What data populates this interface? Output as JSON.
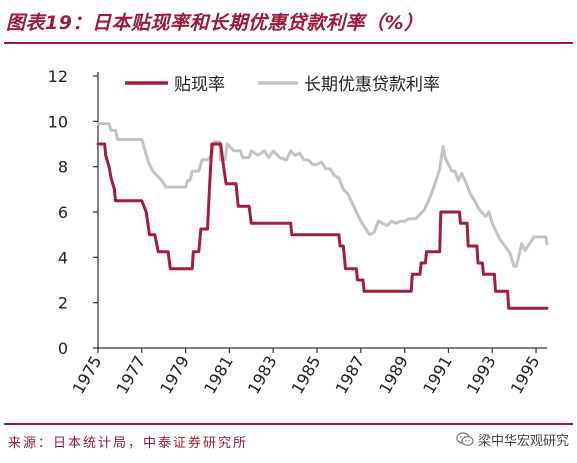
{
  "header": {
    "title": "图表19：日本贴现率和长期优惠贷款利率（%）"
  },
  "footer": {
    "source": "来源：日本统计局，中泰证券研究所",
    "watermark": "梁中华宏观研究",
    "watermark_icon": "wechat-icon"
  },
  "colors": {
    "accent": "#9b1b3a",
    "discount": "#a51c3f",
    "prime": "#c3c3c3"
  },
  "chart_data": {
    "type": "line",
    "xlim": [
      1975,
      1995.5
    ],
    "ylim": [
      0,
      12
    ],
    "x_ticks": [
      "1975",
      "1977",
      "1979",
      "1981",
      "1983",
      "1985",
      "1987",
      "1989",
      "1991",
      "1993",
      "1995"
    ],
    "y_ticks": [
      "0",
      "2",
      "4",
      "6",
      "8",
      "10",
      "12"
    ],
    "legend_placement": "top",
    "grid": false,
    "series": [
      {
        "name": "贴现率",
        "color": "#a51c3f",
        "points": [
          [
            1975.0,
            9.0
          ],
          [
            1975.3,
            9.0
          ],
          [
            1975.35,
            8.5
          ],
          [
            1975.5,
            8.0
          ],
          [
            1975.6,
            7.5
          ],
          [
            1975.75,
            7.0
          ],
          [
            1975.8,
            6.5
          ],
          [
            1976.0,
            6.5
          ],
          [
            1977.0,
            6.5
          ],
          [
            1977.2,
            6.0
          ],
          [
            1977.35,
            5.0
          ],
          [
            1977.6,
            5.0
          ],
          [
            1977.75,
            4.25
          ],
          [
            1978.2,
            4.25
          ],
          [
            1978.3,
            3.5
          ],
          [
            1979.3,
            3.5
          ],
          [
            1979.35,
            4.25
          ],
          [
            1979.6,
            4.25
          ],
          [
            1979.7,
            5.25
          ],
          [
            1980.0,
            5.25
          ],
          [
            1980.1,
            7.25
          ],
          [
            1980.2,
            9.0
          ],
          [
            1980.6,
            9.0
          ],
          [
            1980.7,
            8.25
          ],
          [
            1980.85,
            7.25
          ],
          [
            1981.3,
            7.25
          ],
          [
            1981.4,
            6.25
          ],
          [
            1981.9,
            6.25
          ],
          [
            1982.0,
            5.5
          ],
          [
            1983.8,
            5.5
          ],
          [
            1983.85,
            5.0
          ],
          [
            1986.0,
            5.0
          ],
          [
            1986.05,
            4.5
          ],
          [
            1986.2,
            4.5
          ],
          [
            1986.25,
            4.0
          ],
          [
            1986.3,
            3.5
          ],
          [
            1986.8,
            3.5
          ],
          [
            1986.85,
            3.0
          ],
          [
            1987.1,
            3.0
          ],
          [
            1987.15,
            2.5
          ],
          [
            1989.3,
            2.5
          ],
          [
            1989.35,
            3.25
          ],
          [
            1989.7,
            3.25
          ],
          [
            1989.75,
            3.75
          ],
          [
            1989.95,
            3.75
          ],
          [
            1990.0,
            4.25
          ],
          [
            1990.6,
            4.25
          ],
          [
            1990.65,
            6.0
          ],
          [
            1991.5,
            6.0
          ],
          [
            1991.55,
            5.5
          ],
          [
            1991.85,
            5.5
          ],
          [
            1991.9,
            4.5
          ],
          [
            1992.3,
            4.5
          ],
          [
            1992.35,
            3.75
          ],
          [
            1992.55,
            3.75
          ],
          [
            1992.6,
            3.25
          ],
          [
            1993.1,
            3.25
          ],
          [
            1993.15,
            2.5
          ],
          [
            1993.7,
            2.5
          ],
          [
            1993.75,
            1.75
          ],
          [
            1995.2,
            1.75
          ],
          [
            1995.25,
            1.75
          ],
          [
            1995.5,
            1.75
          ]
        ]
      },
      {
        "name": "长期优惠贷款利率",
        "color": "#c3c3c3",
        "points": [
          [
            1975.0,
            9.9
          ],
          [
            1975.5,
            9.9
          ],
          [
            1975.6,
            9.6
          ],
          [
            1975.8,
            9.6
          ],
          [
            1975.9,
            9.2
          ],
          [
            1976.5,
            9.2
          ],
          [
            1977.0,
            9.2
          ],
          [
            1977.15,
            8.7
          ],
          [
            1977.3,
            8.2
          ],
          [
            1977.5,
            7.8
          ],
          [
            1977.7,
            7.6
          ],
          [
            1977.9,
            7.4
          ],
          [
            1978.1,
            7.1
          ],
          [
            1979.0,
            7.1
          ],
          [
            1979.1,
            7.4
          ],
          [
            1979.2,
            7.4
          ],
          [
            1979.3,
            7.8
          ],
          [
            1979.6,
            7.8
          ],
          [
            1979.75,
            8.3
          ],
          [
            1980.0,
            8.3
          ],
          [
            1980.2,
            8.5
          ],
          [
            1980.3,
            9.1
          ],
          [
            1980.55,
            9.1
          ],
          [
            1980.6,
            8.3
          ],
          [
            1980.8,
            8.3
          ],
          [
            1980.9,
            9.0
          ],
          [
            1981.2,
            8.7
          ],
          [
            1981.5,
            8.7
          ],
          [
            1981.6,
            8.4
          ],
          [
            1981.9,
            8.4
          ],
          [
            1982.0,
            8.7
          ],
          [
            1982.3,
            8.5
          ],
          [
            1982.6,
            8.7
          ],
          [
            1982.8,
            8.4
          ],
          [
            1983.0,
            8.7
          ],
          [
            1983.3,
            8.4
          ],
          [
            1983.6,
            8.3
          ],
          [
            1983.8,
            8.7
          ],
          [
            1984.0,
            8.5
          ],
          [
            1984.2,
            8.6
          ],
          [
            1984.4,
            8.3
          ],
          [
            1984.6,
            8.3
          ],
          [
            1984.8,
            8.1
          ],
          [
            1985.0,
            8.1
          ],
          [
            1985.2,
            8.2
          ],
          [
            1985.4,
            7.9
          ],
          [
            1985.6,
            7.9
          ],
          [
            1985.8,
            7.6
          ],
          [
            1986.0,
            7.5
          ],
          [
            1986.2,
            7.0
          ],
          [
            1986.4,
            6.8
          ],
          [
            1986.6,
            6.4
          ],
          [
            1986.8,
            6.0
          ],
          [
            1987.0,
            5.6
          ],
          [
            1987.2,
            5.3
          ],
          [
            1987.4,
            5.0
          ],
          [
            1987.6,
            5.1
          ],
          [
            1987.8,
            5.6
          ],
          [
            1988.0,
            5.5
          ],
          [
            1988.2,
            5.4
          ],
          [
            1988.4,
            5.6
          ],
          [
            1988.6,
            5.5
          ],
          [
            1988.8,
            5.6
          ],
          [
            1989.0,
            5.6
          ],
          [
            1989.2,
            5.7
          ],
          [
            1989.5,
            5.7
          ],
          [
            1989.7,
            5.9
          ],
          [
            1989.9,
            6.1
          ],
          [
            1990.1,
            6.5
          ],
          [
            1990.3,
            7.0
          ],
          [
            1990.5,
            7.6
          ],
          [
            1990.6,
            7.9
          ],
          [
            1990.75,
            8.9
          ],
          [
            1990.85,
            8.4
          ],
          [
            1991.0,
            8.1
          ],
          [
            1991.15,
            7.8
          ],
          [
            1991.3,
            7.8
          ],
          [
            1991.45,
            7.4
          ],
          [
            1991.6,
            7.7
          ],
          [
            1991.8,
            7.3
          ],
          [
            1992.0,
            6.8
          ],
          [
            1992.2,
            6.5
          ],
          [
            1992.35,
            6.2
          ],
          [
            1992.5,
            6.0
          ],
          [
            1992.7,
            5.8
          ],
          [
            1992.85,
            6.0
          ],
          [
            1993.0,
            5.5
          ],
          [
            1993.2,
            5.1
          ],
          [
            1993.35,
            4.8
          ],
          [
            1993.5,
            4.6
          ],
          [
            1993.65,
            4.4
          ],
          [
            1993.8,
            4.2
          ],
          [
            1994.0,
            3.6
          ],
          [
            1994.1,
            3.6
          ],
          [
            1994.2,
            4.0
          ],
          [
            1994.35,
            4.6
          ],
          [
            1994.5,
            4.3
          ],
          [
            1994.7,
            4.6
          ],
          [
            1994.9,
            4.9
          ],
          [
            1995.1,
            4.9
          ],
          [
            1995.3,
            4.9
          ],
          [
            1995.45,
            4.9
          ],
          [
            1995.5,
            4.6
          ]
        ]
      }
    ]
  }
}
